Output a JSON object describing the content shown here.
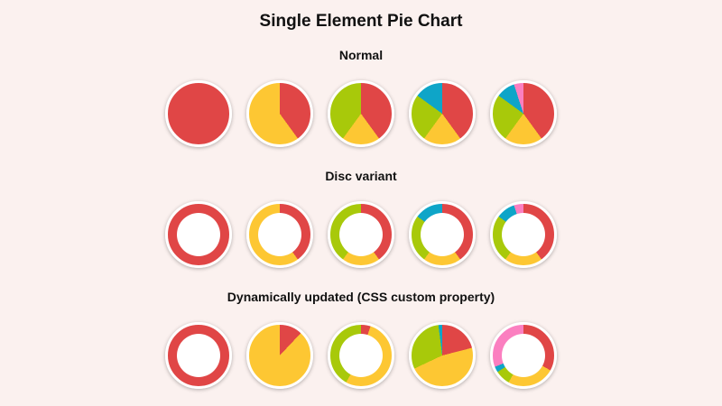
{
  "title": "Single Element Pie Chart",
  "colors": [
    "#e04646",
    "#fdc733",
    "#a8c90a",
    "#0ea5c8",
    "#fb7fc0"
  ],
  "chart_data": [
    {
      "type": "pie",
      "title": "Normal",
      "variant": "pie",
      "charts": [
        [
          100
        ],
        [
          40,
          60
        ],
        [
          40,
          20,
          40
        ],
        [
          40,
          20,
          25,
          15
        ],
        [
          40,
          20,
          25,
          10,
          5
        ]
      ]
    },
    {
      "type": "pie",
      "title": "Disc variant",
      "variant": "disc",
      "charts": [
        [
          100
        ],
        [
          40,
          60
        ],
        [
          40,
          20,
          40
        ],
        [
          40,
          20,
          25,
          15
        ],
        [
          40,
          20,
          25,
          10,
          5
        ]
      ]
    },
    {
      "type": "pie",
      "title": "Dynamically updated (CSS custom property)",
      "variant": "mixed",
      "discs": [
        true,
        false,
        true,
        false,
        true
      ],
      "charts": [
        [
          100
        ],
        [
          12,
          88
        ],
        [
          5,
          53,
          42
        ],
        [
          21,
          47,
          30,
          2
        ],
        [
          33,
          25,
          8,
          3,
          31
        ]
      ]
    }
  ]
}
